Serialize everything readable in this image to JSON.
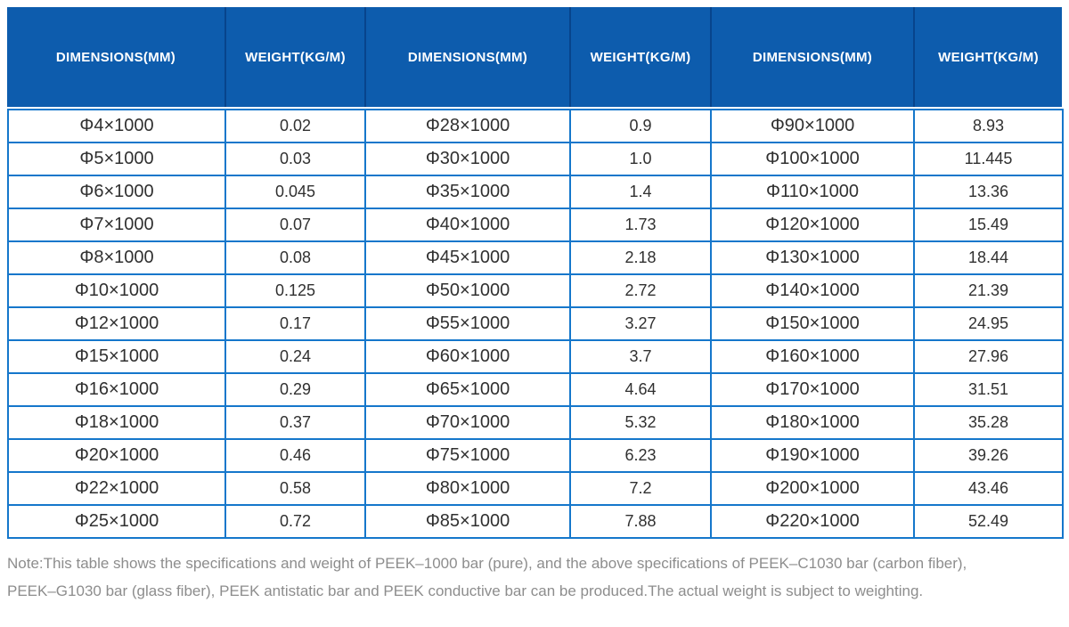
{
  "table": {
    "columns": [
      "DIMENSIONS(MM)",
      "WEIGHT(KG/M)",
      "DIMENSIONS(MM)",
      "WEIGHT(KG/M)",
      "DIMENSIONS(MM)",
      "WEIGHT(KG/M)"
    ],
    "rows": [
      [
        "Φ4×1000",
        "0.02",
        "Φ28×1000",
        "0.9",
        "Φ90×1000",
        "8.93"
      ],
      [
        "Φ5×1000",
        "0.03",
        "Φ30×1000",
        "1.0",
        "Φ100×1000",
        "11.445"
      ],
      [
        "Φ6×1000",
        "0.045",
        "Φ35×1000",
        "1.4",
        "Φ110×1000",
        "13.36"
      ],
      [
        "Φ7×1000",
        "0.07",
        "Φ40×1000",
        "1.73",
        "Φ120×1000",
        "15.49"
      ],
      [
        "Φ8×1000",
        "0.08",
        "Φ45×1000",
        "2.18",
        "Φ130×1000",
        "18.44"
      ],
      [
        "Φ10×1000",
        "0.125",
        "Φ50×1000",
        "2.72",
        "Φ140×1000",
        "21.39"
      ],
      [
        "Φ12×1000",
        "0.17",
        "Φ55×1000",
        "3.27",
        "Φ150×1000",
        "24.95"
      ],
      [
        "Φ15×1000",
        "0.24",
        "Φ60×1000",
        "3.7",
        "Φ160×1000",
        "27.96"
      ],
      [
        "Φ16×1000",
        "0.29",
        "Φ65×1000",
        "4.64",
        "Φ170×1000",
        "31.51"
      ],
      [
        "Φ18×1000",
        "0.37",
        "Φ70×1000",
        "5.32",
        "Φ180×1000",
        "35.28"
      ],
      [
        "Φ20×1000",
        "0.46",
        "Φ75×1000",
        "6.23",
        "Φ190×1000",
        "39.26"
      ],
      [
        "Φ22×1000",
        "0.58",
        "Φ80×1000",
        "7.2",
        "Φ200×1000",
        "43.46"
      ],
      [
        "Φ25×1000",
        "0.72",
        "Φ85×1000",
        "7.88",
        "Φ220×1000",
        "52.49"
      ]
    ]
  },
  "note": {
    "line1": "Note:This table shows the specifications and weight of PEEK–1000 bar (pure), and the above specifications of PEEK–C1030 bar (carbon fiber),",
    "line2": "PEEK–G1030 bar (glass fiber), PEEK antistatic bar and PEEK conductive bar can be produced.The actual weight is subject to weighting."
  },
  "colors": {
    "header_bg": "#0d5cad",
    "header_separator": "#07448c",
    "header_text": "#ffffff",
    "body_border": "#1577cb",
    "body_text": "#303030",
    "note_text": "#8d8d8d"
  }
}
